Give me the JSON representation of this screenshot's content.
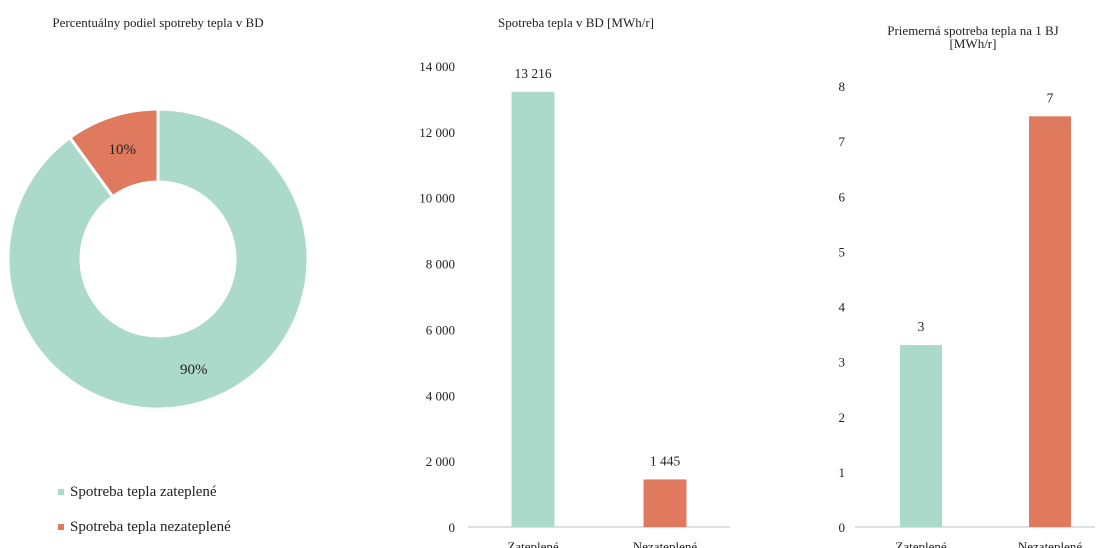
{
  "colors": {
    "insulated": "#abd9ca",
    "uninsulated": "#e07a5f",
    "axis": "#bfbfbf"
  },
  "chart_data": [
    {
      "type": "pie",
      "title": "Percentuálny podiel spotreby tepla v BD",
      "style": "donut",
      "categories": [
        "Spotreba tepla zateplené",
        "Spotreba tepla nezateplené"
      ],
      "values": [
        90,
        10
      ],
      "labels": [
        "90%",
        "10%"
      ],
      "legend_items": [
        "Spotreba tepla zateplené",
        "Spotreba tepla nezateplené"
      ],
      "legend": "bottom-left"
    },
    {
      "type": "bar",
      "title": "Spotreba tepla v BD [MWh/r]",
      "categories": [
        "Zateplené",
        "Nezateplené"
      ],
      "values": [
        13216,
        1445
      ],
      "data_labels": [
        "13 216",
        "1 445"
      ],
      "ylim": [
        0,
        14000
      ],
      "yticks": [
        "0",
        "2 000",
        "4 000",
        "6 000",
        "8 000",
        "10 000",
        "12 000",
        "14 000"
      ],
      "grid": false
    },
    {
      "type": "bar",
      "title_lines": [
        "Priemerná spotreba tepla na 1 BJ",
        "[MWh/r]"
      ],
      "categories": [
        "Zateplené",
        "Nezateplené"
      ],
      "values": [
        3.3,
        7.45
      ],
      "data_labels": [
        "3",
        "7"
      ],
      "ylim": [
        0,
        8
      ],
      "yticks": [
        "0",
        "1",
        "2",
        "3",
        "4",
        "5",
        "6",
        "7",
        "8"
      ],
      "grid": false
    }
  ]
}
